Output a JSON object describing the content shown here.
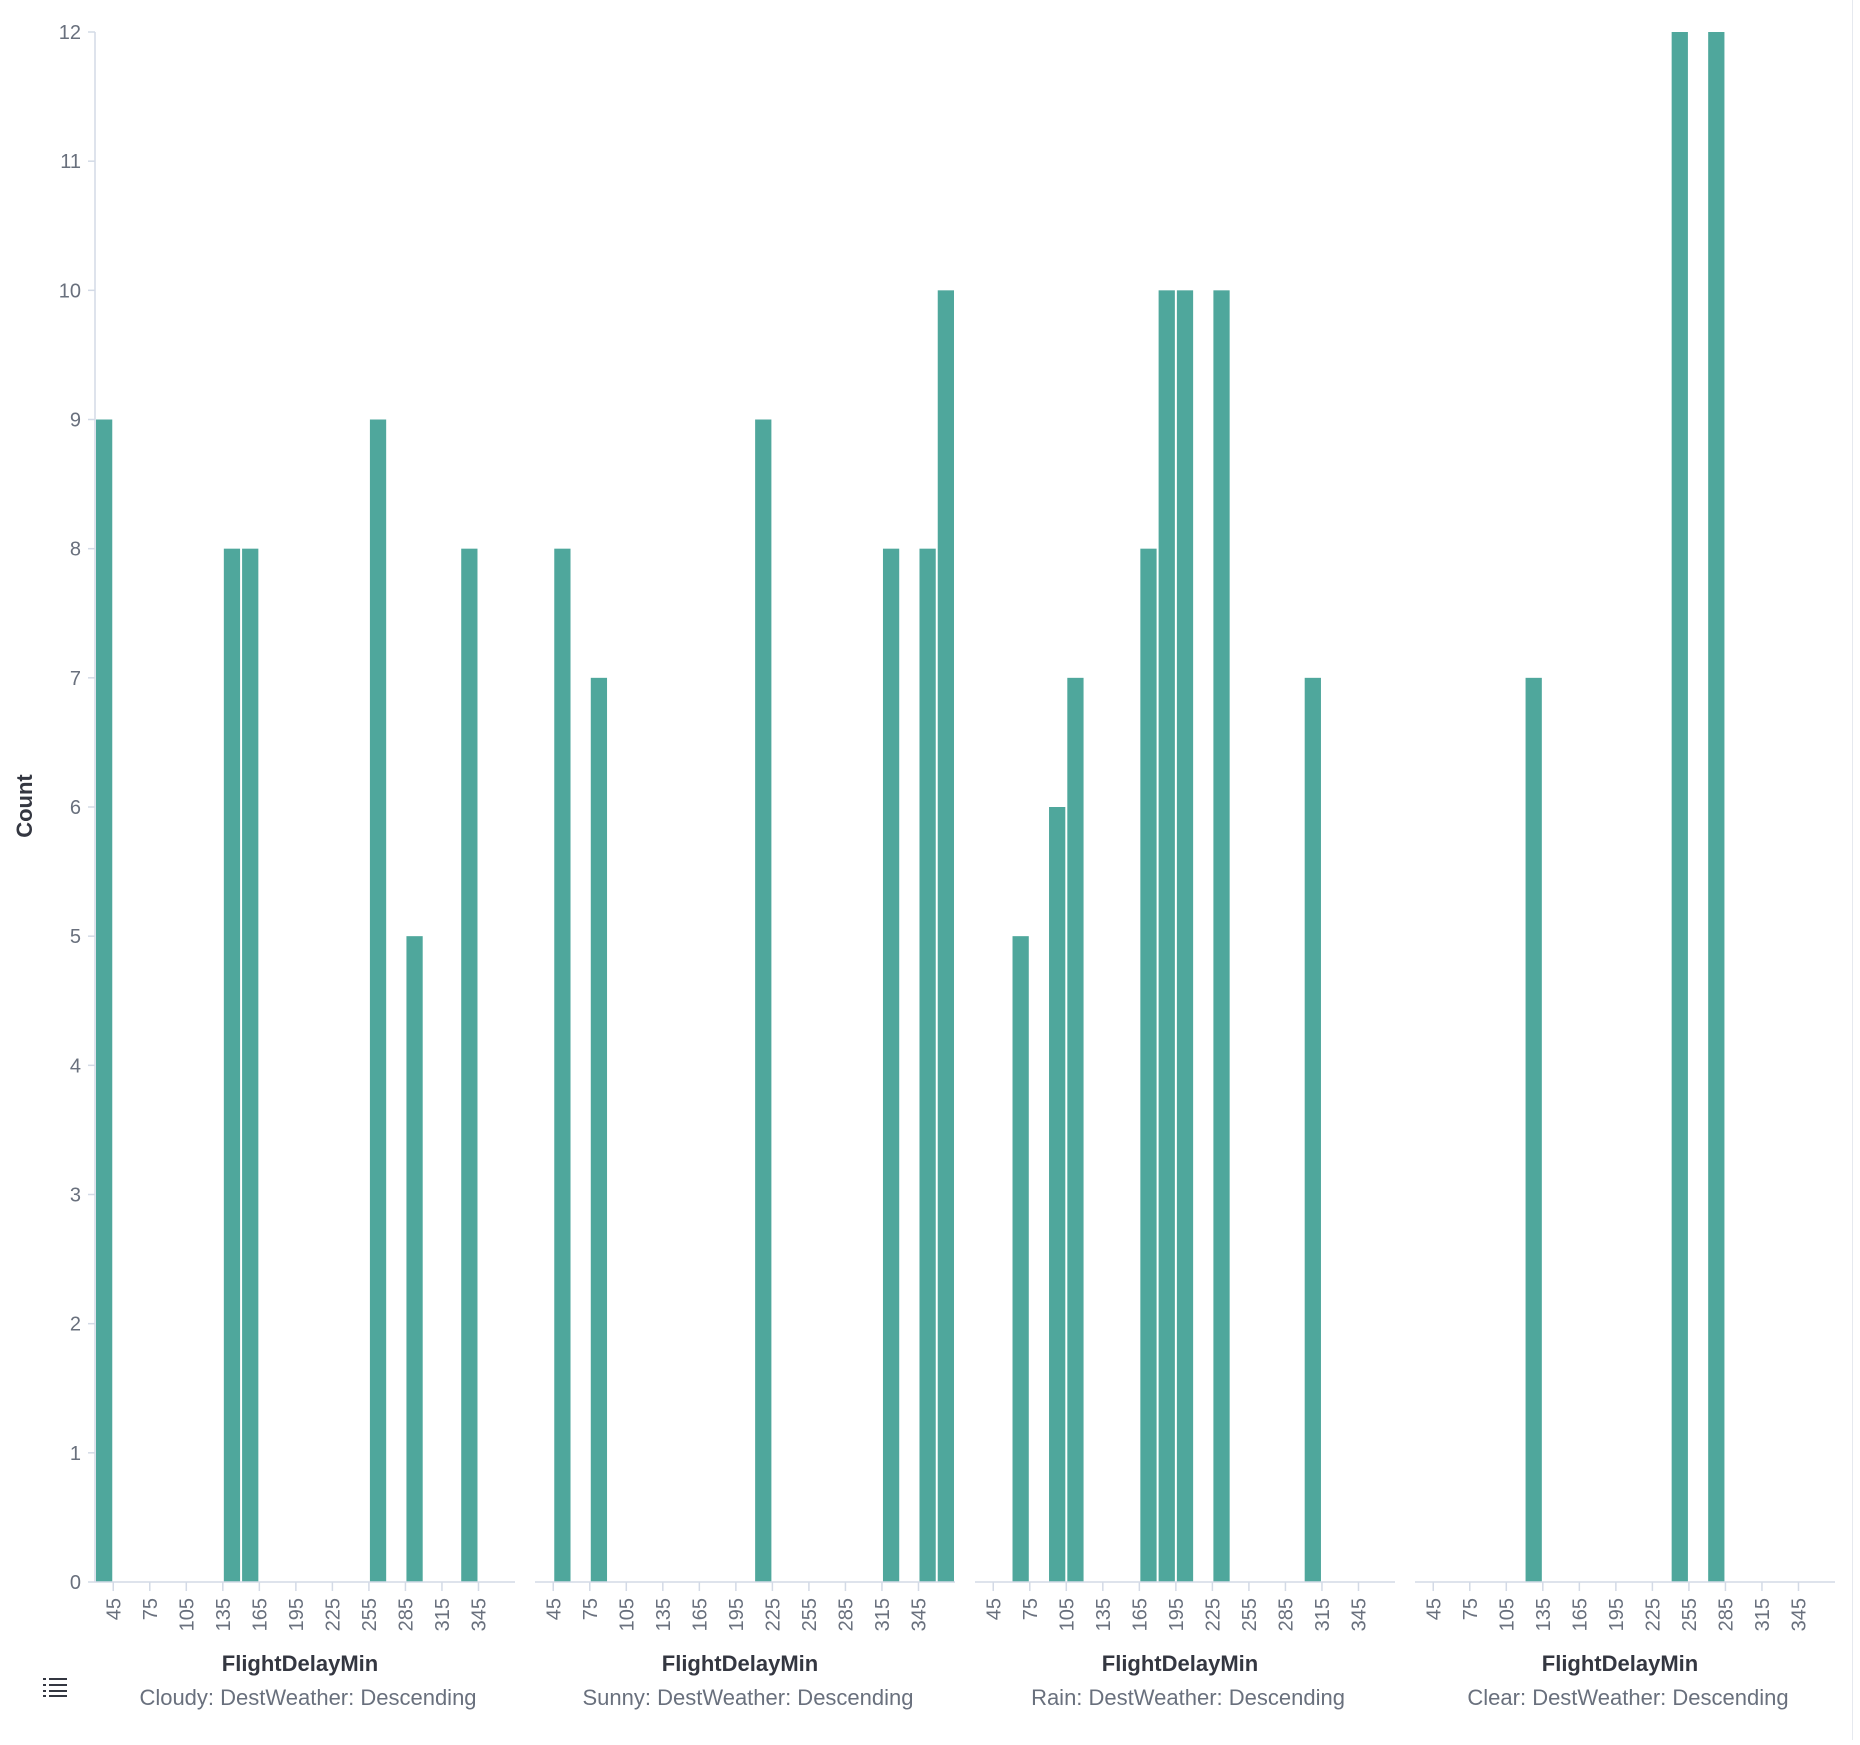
{
  "chart_data": {
    "type": "bar",
    "ylabel": "Count",
    "ylim": [
      0,
      12
    ],
    "yticks": [
      0,
      1,
      2,
      3,
      4,
      5,
      6,
      7,
      8,
      9,
      10,
      11,
      12
    ],
    "xticks": [
      45,
      75,
      105,
      135,
      165,
      195,
      225,
      255,
      285,
      315,
      345
    ],
    "xlim": [
      30,
      375
    ],
    "bin_width": 15,
    "bar_color": "#4fa79c",
    "legend_icon": "list-icon",
    "panels": [
      {
        "xlabel": "FlightDelayMin",
        "subtitle": "Cloudy: DestWeather: Descending",
        "bins": [
          30,
          135,
          150,
          255,
          285,
          330
        ],
        "values": [
          9,
          8,
          8,
          9,
          5,
          8
        ]
      },
      {
        "xlabel": "FlightDelayMin",
        "subtitle": "Sunny: DestWeather: Descending",
        "bins": [
          45,
          75,
          210,
          315,
          345,
          360
        ],
        "values": [
          8,
          7,
          9,
          8,
          8,
          10
        ]
      },
      {
        "xlabel": "FlightDelayMin",
        "subtitle": "Rain: DestWeather: Descending",
        "bins": [
          60,
          90,
          105,
          165,
          180,
          195,
          225,
          300
        ],
        "values": [
          5,
          6,
          7,
          8,
          10,
          10,
          10,
          7
        ]
      },
      {
        "xlabel": "FlightDelayMin",
        "subtitle": "Clear: DestWeather: Descending",
        "bins": [
          120,
          240,
          270
        ],
        "values": [
          7,
          12,
          12
        ]
      }
    ]
  }
}
